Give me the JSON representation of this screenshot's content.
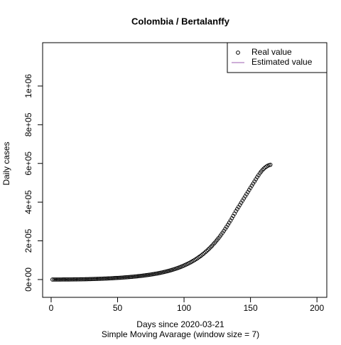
{
  "chart_data": {
    "type": "scatter",
    "title": "Colombia / Bertalanffy",
    "xlabel": "Days since 2020-03-21",
    "subtitle": "Simple Moving Avarage (window size = 7)",
    "ylabel": "Daily cases",
    "xlim": [
      -6.4,
      207.4
    ],
    "ylim": [
      -92000,
      1224000
    ],
    "xticks": [
      0,
      50,
      100,
      150,
      200
    ],
    "yticks": [
      {
        "value": 0,
        "label": "0e+00"
      },
      {
        "value": 200000,
        "label": "2e+05"
      },
      {
        "value": 400000,
        "label": "4e+05"
      },
      {
        "value": 600000,
        "label": "6e+05"
      },
      {
        "value": 800000,
        "label": "8e+05"
      },
      {
        "value": 1000000,
        "label": "1e+06"
      }
    ],
    "legend": "topright",
    "x": [
      1,
      2,
      3,
      4,
      5,
      6,
      7,
      8,
      9,
      10,
      11,
      12,
      13,
      14,
      15,
      16,
      17,
      18,
      19,
      20,
      21,
      22,
      23,
      24,
      25,
      26,
      27,
      28,
      29,
      30,
      31,
      32,
      33,
      34,
      35,
      36,
      37,
      38,
      39,
      40,
      41,
      42,
      43,
      44,
      45,
      46,
      47,
      48,
      49,
      50,
      51,
      52,
      53,
      54,
      55,
      56,
      57,
      58,
      59,
      60,
      61,
      62,
      63,
      64,
      65,
      66,
      67,
      68,
      69,
      70,
      71,
      72,
      73,
      74,
      75,
      76,
      77,
      78,
      79,
      80,
      81,
      82,
      83,
      84,
      85,
      86,
      87,
      88,
      89,
      90,
      91,
      92,
      93,
      94,
      95,
      96,
      97,
      98,
      99,
      100,
      101,
      102,
      103,
      104,
      105,
      106,
      107,
      108,
      109,
      110,
      111,
      112,
      113,
      114,
      115,
      116,
      117,
      118,
      119,
      120,
      121,
      122,
      123,
      124,
      125,
      126,
      127,
      128,
      129,
      130,
      131,
      132,
      133,
      134,
      135,
      136,
      137,
      138,
      139,
      140,
      141,
      142,
      143,
      144,
      145,
      146,
      147,
      148,
      149,
      150,
      151,
      152,
      153,
      154,
      155,
      156,
      157,
      158,
      159,
      160,
      161,
      162,
      163,
      164,
      165
    ],
    "series": [
      {
        "name": "Real value",
        "marker": "circle",
        "color": "#000000",
        "values": [
          50,
          60,
          80,
          100,
          120,
          150,
          180,
          210,
          250,
          290,
          330,
          380,
          430,
          490,
          550,
          620,
          700,
          780,
          870,
          960,
          1060,
          1170,
          1290,
          1420,
          1560,
          1710,
          1870,
          2040,
          2220,
          2410,
          2610,
          2820,
          3040,
          3270,
          3510,
          3760,
          4020,
          4290,
          4570,
          4860,
          5160,
          5480,
          5810,
          6150,
          6500,
          6870,
          7250,
          7650,
          8060,
          8480,
          8920,
          9370,
          9840,
          10330,
          10830,
          11350,
          11890,
          12450,
          13030,
          13630,
          14250,
          14890,
          15560,
          16250,
          16970,
          17710,
          18480,
          19280,
          20110,
          20970,
          21860,
          22790,
          23760,
          24770,
          25820,
          26910,
          28050,
          29230,
          30460,
          31740,
          33080,
          34470,
          35920,
          37430,
          39010,
          40650,
          42360,
          44140,
          46000,
          47940,
          49960,
          52070,
          54270,
          56560,
          58950,
          61440,
          64040,
          66750,
          69580,
          72530,
          75610,
          78820,
          82170,
          85660,
          89300,
          93100,
          97060,
          101190,
          105500,
          110000,
          114700,
          119600,
          124700,
          130000,
          135600,
          141400,
          147500,
          153800,
          160400,
          167200,
          174300,
          181700,
          189400,
          197400,
          205700,
          214300,
          223200,
          232400,
          241900,
          251700,
          261800,
          272200,
          282900,
          293900,
          305200,
          316800,
          328700,
          340900,
          353400,
          364000,
          375000,
          386000,
          397000,
          408000,
          419000,
          430000,
          441000,
          452000,
          463000,
          474000,
          485000,
          496000,
          507000,
          518000,
          529000,
          539000,
          549000,
          558000,
          566000,
          573000,
          579000,
          584000,
          588000,
          591000,
          593000
        ]
      },
      {
        "name": "Estimated value",
        "marker": "line",
        "color": "#9e5fb0",
        "x": [],
        "values": []
      }
    ]
  }
}
